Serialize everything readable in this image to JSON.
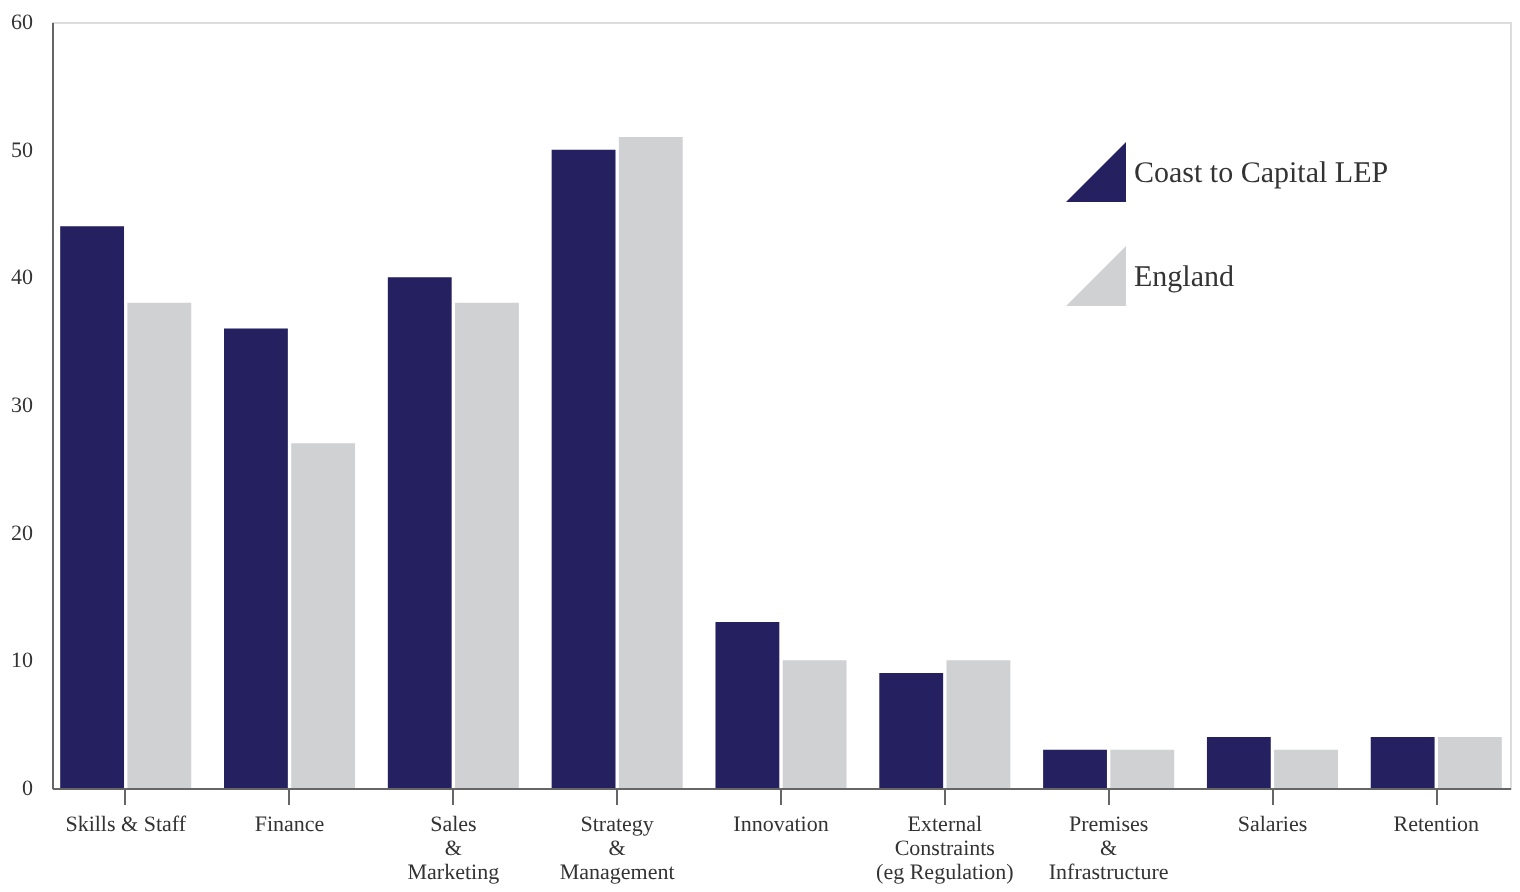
{
  "chart_data": {
    "type": "bar",
    "categories": [
      "Skills & Staff",
      "Finance",
      "Sales\n&\nMarketing",
      "Strategy\n&\nManagement",
      "Innovation",
      "External\nConstraints\n(eg Regulation)",
      "Premises\n&\nInfrastructure",
      "Salaries",
      "Retention"
    ],
    "series": [
      {
        "name": "Coast to Capital LEP",
        "color": "#252161",
        "values": [
          44,
          36,
          40,
          50,
          13,
          9,
          3,
          4,
          4
        ]
      },
      {
        "name": "England",
        "color": "#d0d1d3",
        "values": [
          38,
          27,
          38,
          51,
          10,
          10,
          3,
          3,
          4
        ]
      }
    ],
    "ylim": [
      0,
      60
    ],
    "yticks": [
      0,
      10,
      20,
      30,
      40,
      50,
      60
    ],
    "grid": false,
    "legend": "top right"
  }
}
